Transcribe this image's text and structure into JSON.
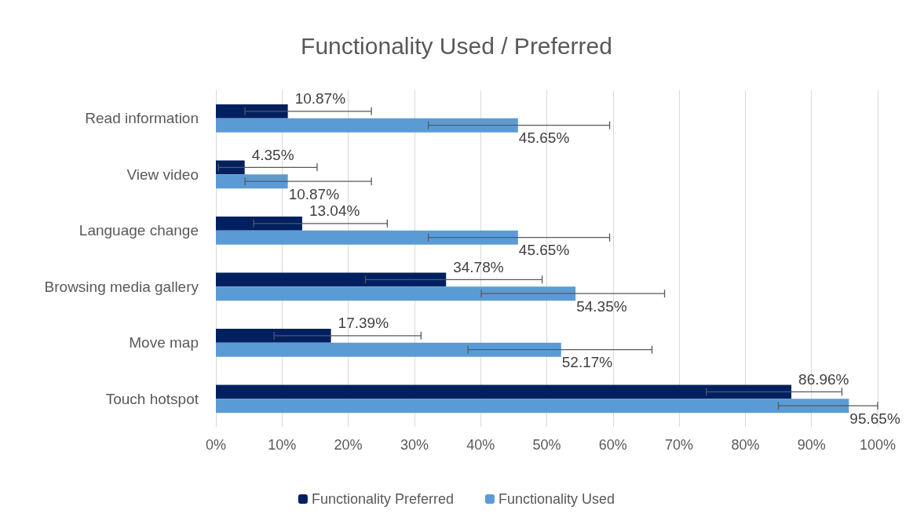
{
  "chart_data": {
    "type": "bar",
    "orientation": "horizontal",
    "title": "Functionality Used / Preferred",
    "categories": [
      "Read information",
      "View video",
      "Language change",
      "Browsing media gallery",
      "Move map",
      "Touch hotspot"
    ],
    "series": [
      {
        "name": "Functionality Preferred",
        "color": "#002060",
        "values": [
          10.87,
          4.35,
          13.04,
          34.78,
          17.39,
          86.96
        ],
        "value_labels": [
          "10.87%",
          "4.35%",
          "13.04%",
          "34.78%",
          "17.39%",
          "86.96%"
        ],
        "errors": [
          [
            4.4,
            23.5
          ],
          [
            0.4,
            15.3
          ],
          [
            5.7,
            25.9
          ],
          [
            22.6,
            49.3
          ],
          [
            8.8,
            31.0
          ],
          [
            74.1,
            94.6
          ]
        ]
      },
      {
        "name": "Functionality Used",
        "color": "#5b9bd5",
        "values": [
          45.65,
          10.87,
          45.65,
          54.35,
          52.17,
          95.65
        ],
        "value_labels": [
          "45.65%",
          "10.87%",
          "45.65%",
          "54.35%",
          "52.17%",
          "95.65%"
        ],
        "errors": [
          [
            32.1,
            59.5
          ],
          [
            4.4,
            23.5
          ],
          [
            32.1,
            59.5
          ],
          [
            40.1,
            67.8
          ],
          [
            38.1,
            65.9
          ],
          [
            85.0,
            100
          ]
        ]
      }
    ],
    "xlim": [
      0,
      100
    ],
    "xticks": [
      {
        "value": 0,
        "label": "0%"
      },
      {
        "value": 10,
        "label": "10%"
      },
      {
        "value": 20,
        "label": "20%"
      },
      {
        "value": 30,
        "label": "30%"
      },
      {
        "value": 40,
        "label": "40%"
      },
      {
        "value": 50,
        "label": "50%"
      },
      {
        "value": 60,
        "label": "60%"
      },
      {
        "value": 70,
        "label": "70%"
      },
      {
        "value": 80,
        "label": "80%"
      },
      {
        "value": 90,
        "label": "90%"
      },
      {
        "value": 100,
        "label": "100%"
      }
    ],
    "grid": "x",
    "legend": "bottom"
  }
}
